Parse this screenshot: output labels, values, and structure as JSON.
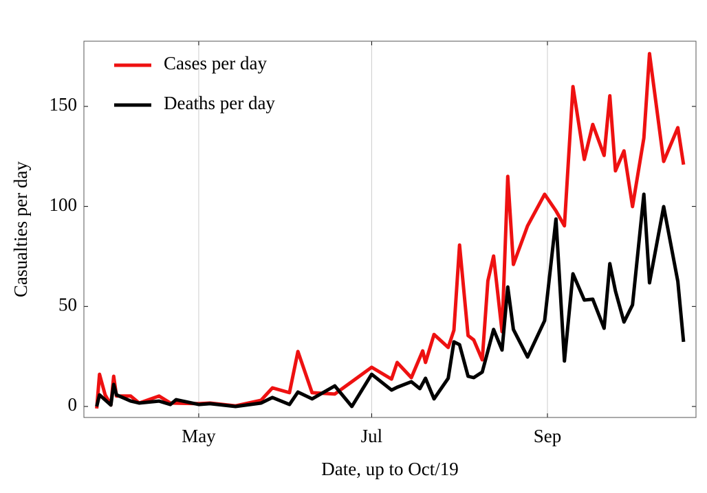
{
  "chart_data": {
    "type": "line",
    "xlabel": "Date, up to Oct/19",
    "ylabel": "Casualties per day",
    "xlim": [
      80.5,
      296.4
    ],
    "xticks": [
      {
        "value": 121,
        "label": "May"
      },
      {
        "value": 182,
        "label": "Jul"
      },
      {
        "value": 244,
        "label": "Sep"
      }
    ],
    "ylim": [
      -5.5,
      182.6
    ],
    "yticks": [
      0,
      50,
      100,
      150
    ],
    "grid": "x",
    "legend": "upper left",
    "series": [
      {
        "name": "Cases per day",
        "color": "#ee1111",
        "x": [
          85,
          86,
          88,
          90,
          91,
          92,
          97,
          100,
          107,
          111,
          121,
          125,
          134,
          143,
          147,
          153,
          156,
          161,
          169,
          182,
          189,
          191,
          196,
          200,
          201,
          204,
          209,
          211,
          213,
          216,
          218,
          221,
          223,
          225,
          228,
          230,
          232,
          237,
          243,
          247,
          250,
          253,
          257,
          260,
          264,
          266,
          268,
          271,
          274,
          278,
          280,
          285,
          290,
          292
        ],
        "values": [
          -1.0,
          16.1,
          5.8,
          0.7,
          15.1,
          5.2,
          5.2,
          1.7,
          5.2,
          1.7,
          1.4,
          1.7,
          0.3,
          3.1,
          9.3,
          6.9,
          27.5,
          6.9,
          6.2,
          19.6,
          13.7,
          22.0,
          14.4,
          27.8,
          22.0,
          36.0,
          29.5,
          38.1,
          80.7,
          35.4,
          33.3,
          23.3,
          62.8,
          75.2,
          37.4,
          115.0,
          71.0,
          90.3,
          106.1,
          97.8,
          90.3,
          159.9,
          123.5,
          141.0,
          125.5,
          155.3,
          117.8,
          127.8,
          99.9,
          134.2,
          176.4,
          122.5,
          139.4,
          120.9
        ]
      },
      {
        "name": "Deaths per day",
        "color": "#000000",
        "x": [
          85,
          86,
          90,
          91,
          92,
          97,
          100,
          107,
          111,
          113,
          121,
          125,
          134,
          143,
          147,
          153,
          156,
          161,
          169,
          175,
          182,
          189,
          191,
          196,
          199,
          201,
          204,
          209,
          211,
          213,
          216,
          218,
          221,
          225,
          228,
          230,
          232,
          237,
          243,
          247,
          250,
          253,
          257,
          260,
          264,
          266,
          268,
          271,
          274,
          278,
          280,
          285,
          290,
          292
        ],
        "values": [
          0,
          5.8,
          0.7,
          11.0,
          5.8,
          2.7,
          1.7,
          2.7,
          1.0,
          3.4,
          1.0,
          1.4,
          0,
          1.7,
          4.5,
          1.0,
          7.2,
          3.8,
          10.3,
          0,
          16.1,
          8.2,
          9.6,
          12.4,
          8.9,
          14.1,
          3.8,
          14.1,
          32.3,
          30.9,
          15.1,
          14.4,
          17.2,
          38.5,
          28.2,
          59.7,
          38.5,
          24.7,
          42.9,
          93.7,
          22.7,
          66.3,
          53.2,
          53.6,
          39.1,
          71.4,
          57.7,
          42.2,
          50.8,
          106.1,
          61.8,
          99.9,
          62.5,
          32.3
        ]
      }
    ]
  }
}
